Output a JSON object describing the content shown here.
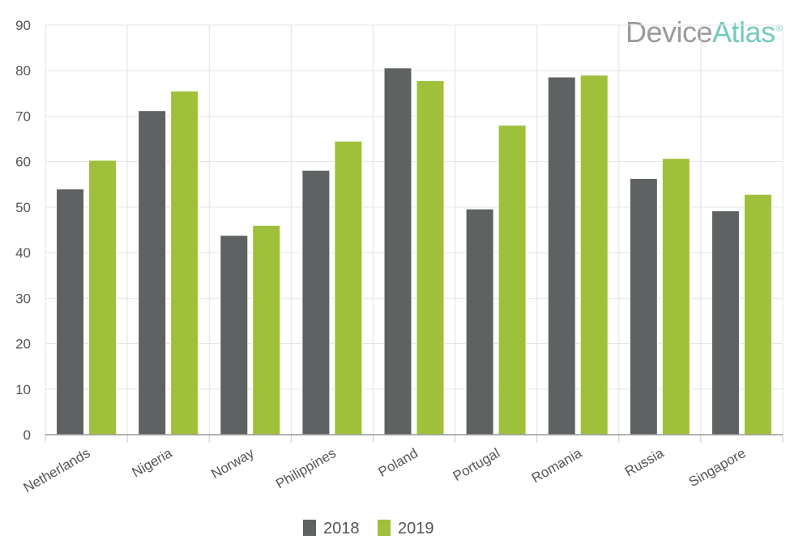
{
  "logo": {
    "part1": "Device",
    "part2": "Atlas",
    "mark": "®"
  },
  "colors": {
    "s2018": "#5f6262",
    "s2019": "#9ec03a",
    "grid": "#e3e3e3",
    "axis": "#999999"
  },
  "chart_data": {
    "type": "bar",
    "categories": [
      "Netherlands",
      "Nigeria",
      "Norway",
      "Philippines",
      "Poland",
      "Portugal",
      "Romania",
      "Russia",
      "Singapore"
    ],
    "series": [
      {
        "name": "2018",
        "values": [
          54.0,
          71.2,
          43.8,
          58.1,
          80.6,
          49.6,
          78.6,
          56.3,
          49.2
        ]
      },
      {
        "name": "2019",
        "values": [
          60.3,
          75.5,
          46.0,
          64.5,
          77.8,
          68.0,
          79.0,
          60.7,
          52.8
        ]
      }
    ],
    "ylim": [
      0,
      90
    ],
    "yticks": [
      0,
      10,
      20,
      30,
      40,
      50,
      60,
      70,
      80,
      90
    ],
    "grid": true,
    "legend_position": "bottom-center"
  }
}
